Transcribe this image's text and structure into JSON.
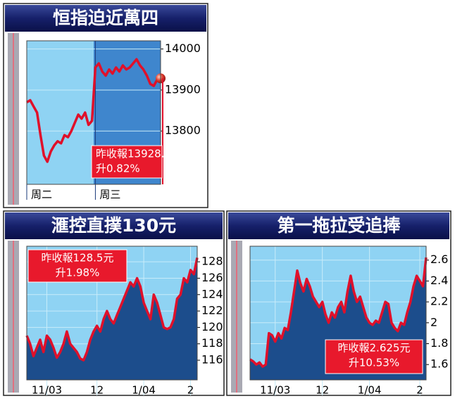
{
  "chart_data": [
    {
      "type": "line",
      "title": "恒指迫近萬四",
      "categories": [
        "周二",
        null,
        null,
        null,
        null,
        null,
        null,
        null,
        null,
        null,
        null,
        null,
        null,
        null,
        null,
        null,
        null,
        null,
        null,
        null,
        "周三",
        null,
        null,
        null,
        null,
        null,
        null,
        null,
        null,
        null,
        null,
        null,
        null,
        null,
        null,
        null,
        null,
        null,
        null,
        null
      ],
      "values": [
        13870,
        13875,
        13860,
        13845,
        13790,
        13740,
        13725,
        13750,
        13765,
        13775,
        13770,
        13790,
        13785,
        13800,
        13820,
        13840,
        13830,
        13845,
        13815,
        13825,
        13955,
        13965,
        13945,
        13935,
        13950,
        13940,
        13955,
        13945,
        13960,
        13950,
        13955,
        13965,
        13975,
        13960,
        13950,
        13935,
        13915,
        13910,
        13925,
        13928.38
      ],
      "color": "#e0102a",
      "ylim": [
        13670,
        14020
      ],
      "yticks": [
        13800,
        13900,
        14000
      ],
      "grid": true,
      "annotation": [
        "昨收報13928.38",
        "升0.82%"
      ]
    },
    {
      "type": "area",
      "title": "滙控直撲130元",
      "categories": [
        null,
        null,
        null,
        null,
        null,
        null,
        "11/03",
        null,
        null,
        null,
        null,
        null,
        null,
        null,
        null,
        null,
        null,
        null,
        null,
        null,
        null,
        "12",
        null,
        null,
        null,
        null,
        null,
        null,
        null,
        null,
        null,
        null,
        null,
        null,
        null,
        "1/04",
        null,
        null,
        null,
        null,
        null,
        null,
        null,
        null,
        null,
        null,
        null,
        null,
        null,
        "2",
        null,
        null
      ],
      "values": [
        119,
        118,
        116.5,
        117.5,
        118.5,
        117,
        119,
        118.5,
        117.5,
        116.3,
        117,
        118,
        119.5,
        118,
        117.5,
        117,
        116.2,
        116,
        117,
        118.5,
        119.5,
        120.2,
        119.5,
        121,
        122,
        121,
        120.5,
        121.5,
        122.5,
        123.5,
        124.5,
        125.5,
        125,
        126,
        125,
        123,
        122,
        121,
        124,
        123,
        121.5,
        120,
        119.8,
        120,
        121,
        123.5,
        124,
        126,
        125.5,
        127,
        126.5,
        128.5
      ],
      "color": "#e0102a",
      "ylim": [
        113.6,
        129.9
      ],
      "yticks": [
        116,
        118,
        120,
        122,
        124,
        126,
        128
      ],
      "grid": true,
      "annotation": [
        "昨收報128.5元",
        "升1.98%"
      ]
    },
    {
      "type": "area",
      "title": "第一拖拉受追捧",
      "categories": [
        null,
        null,
        null,
        null,
        null,
        null,
        null,
        null,
        "11/03",
        null,
        null,
        null,
        null,
        null,
        null,
        null,
        null,
        null,
        null,
        null,
        null,
        null,
        null,
        "12",
        null,
        null,
        null,
        null,
        null,
        null,
        null,
        null,
        null,
        null,
        null,
        null,
        null,
        null,
        "1/04",
        null,
        null,
        null,
        null,
        null,
        null,
        null,
        null,
        null,
        null,
        null,
        null,
        null,
        null,
        null,
        "2",
        null,
        null
      ],
      "values": [
        1.65,
        1.63,
        1.6,
        1.62,
        1.58,
        1.6,
        1.9,
        1.88,
        1.82,
        1.9,
        1.85,
        1.95,
        1.93,
        2.1,
        2.3,
        2.5,
        2.38,
        2.3,
        2.42,
        2.35,
        2.25,
        2.2,
        2.15,
        2.2,
        2.08,
        2.0,
        2.1,
        2.05,
        2.15,
        2.2,
        2.1,
        2.3,
        2.45,
        2.3,
        2.2,
        2.25,
        2.15,
        2.05,
        2.0,
        1.98,
        2.02,
        2.0,
        2.1,
        2.2,
        2.18,
        2.0,
        1.95,
        1.92,
        2.0,
        1.98,
        2.1,
        2.2,
        2.35,
        2.45,
        2.4,
        2.35,
        2.625
      ],
      "color": "#e0102a",
      "ylim": [
        1.453,
        2.733
      ],
      "yticks": [
        1.6,
        1.8,
        2.0,
        2.2,
        2.4,
        2.6
      ],
      "grid": true,
      "annotation": [
        "昨收報2.625元",
        "升10.53%"
      ]
    }
  ]
}
